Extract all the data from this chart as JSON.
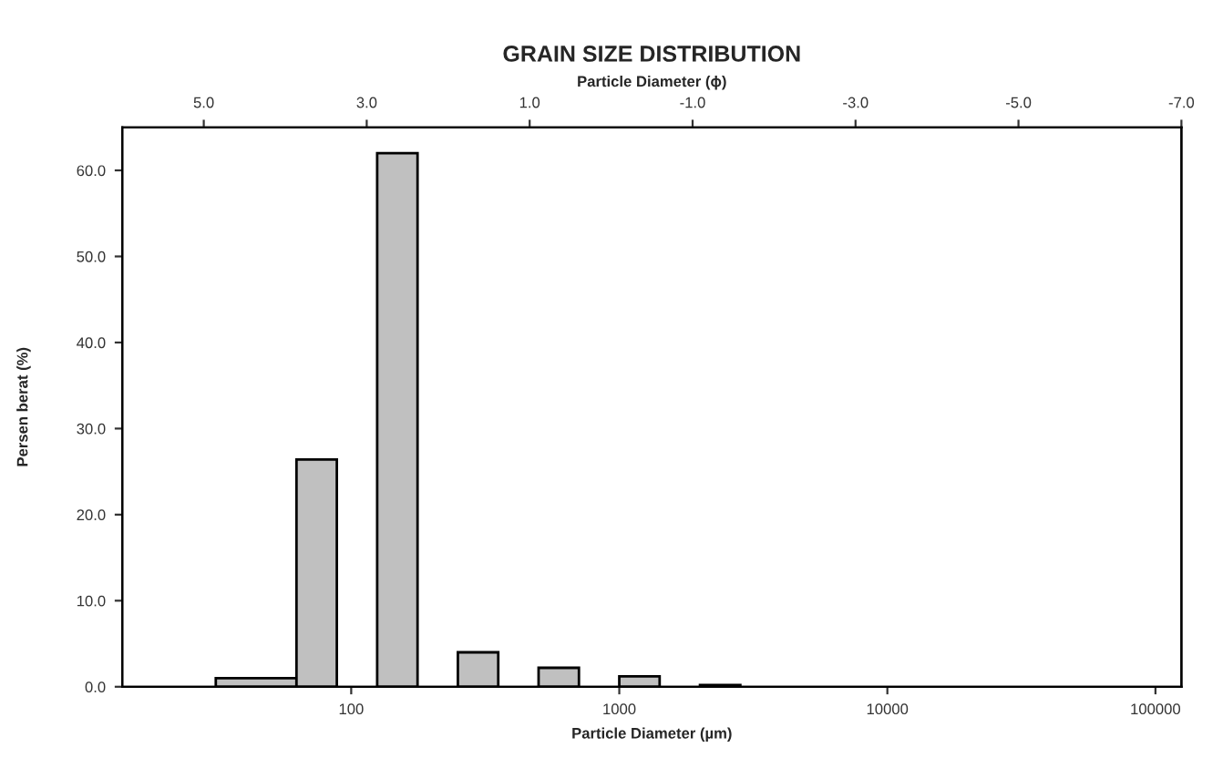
{
  "chart_data": {
    "type": "histogram",
    "title": "GRAIN SIZE DISTRIBUTION",
    "xlabel": "Particle Diameter (µm)",
    "x2label": "Particle Diameter (ϕ)",
    "ylabel": "Persen berat (%)",
    "bins": [
      31.25,
      62.5,
      88.4,
      125,
      176.8,
      250,
      353.6,
      500,
      707.1,
      1000,
      1414.2,
      2000,
      2828.4
    ],
    "values": [
      1.0,
      26.4,
      0,
      62.0,
      0,
      4.0,
      0,
      2.2,
      0,
      1.2,
      0,
      0.2
    ],
    "color": "#c0c0c0",
    "log": "x",
    "xlim": [
      14,
      125000
    ],
    "xticks": [
      100,
      1000,
      10000,
      100000
    ],
    "x2lim": [
      6.0,
      -7.0
    ],
    "x2ticks": [
      {
        "value": 5,
        "label": "5.0"
      },
      {
        "value": 3,
        "label": "3.0"
      },
      {
        "value": 1,
        "label": "1.0"
      },
      {
        "value": -1,
        "label": "-1.0"
      },
      {
        "value": -3,
        "label": "-3.0"
      },
      {
        "value": -5,
        "label": "-5.0"
      },
      {
        "value": -7,
        "label": "-7.0"
      }
    ],
    "ylim": [
      0,
      65
    ],
    "yticks": [
      {
        "value": 0,
        "label": "0.0"
      },
      {
        "value": 10,
        "label": "10.0"
      },
      {
        "value": 20,
        "label": "20.0"
      },
      {
        "value": 30,
        "label": "30.0"
      },
      {
        "value": 40,
        "label": "40.0"
      },
      {
        "value": 50,
        "label": "50.0"
      },
      {
        "value": 60,
        "label": "60.0"
      }
    ],
    "grid": false
  }
}
